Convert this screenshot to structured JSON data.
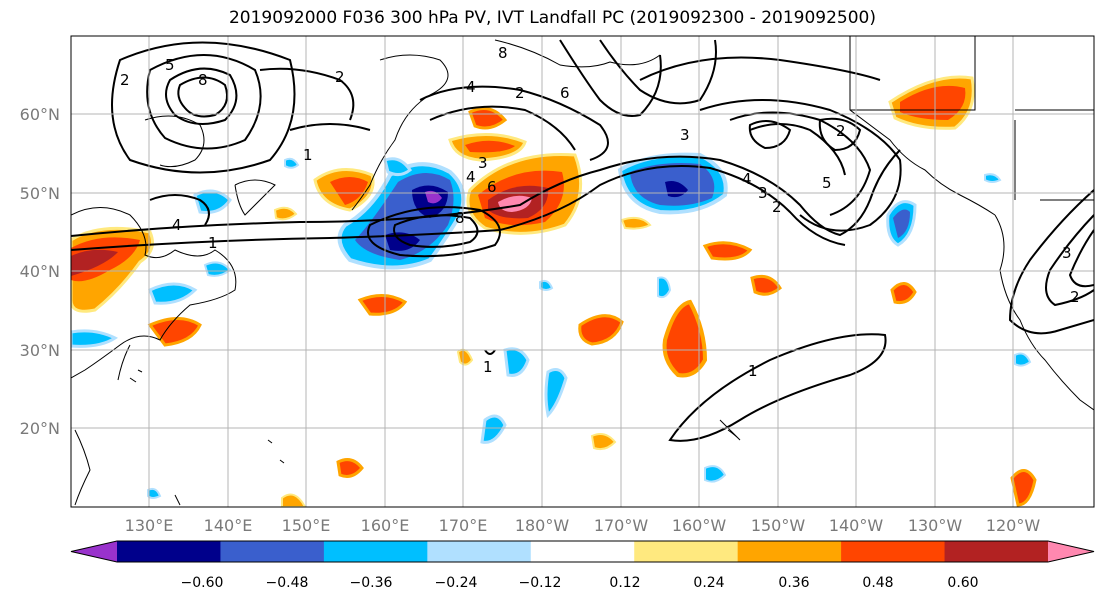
{
  "title": "2019092000 F036 300 hPa PV, IVT Landfall PC (2019092300 - 2019092500)",
  "lat_labels": [
    "60°N",
    "50°N",
    "40°N",
    "30°N",
    "20°N"
  ],
  "lon_labels": [
    "130°E",
    "140°E",
    "150°E",
    "160°E",
    "170°E",
    "180°W",
    "170°W",
    "160°W",
    "150°W",
    "140°W",
    "130°W",
    "120°W"
  ],
  "colorbar": {
    "ticks": [
      "−0.60",
      "−0.48",
      "−0.36",
      "−0.24",
      "−0.12",
      "0.12",
      "0.24",
      "0.36",
      "0.48",
      "0.60"
    ],
    "colors": [
      "#9932cc",
      "#00008b",
      "#3a5fcd",
      "#00bfff",
      "#b0e0ff",
      "#ffffff",
      "#ffe97f",
      "#ffa500",
      "#ff4500",
      "#b22222",
      "#ff88b0"
    ]
  },
  "contour_labels": [
    "2",
    "5",
    "8",
    "1",
    "2",
    "6",
    "8",
    "4",
    "2",
    "4",
    "3",
    "6",
    "8",
    "3",
    "2",
    "5",
    "4",
    "3",
    "2",
    "1",
    "4",
    "1",
    "3",
    "2",
    "1"
  ]
}
